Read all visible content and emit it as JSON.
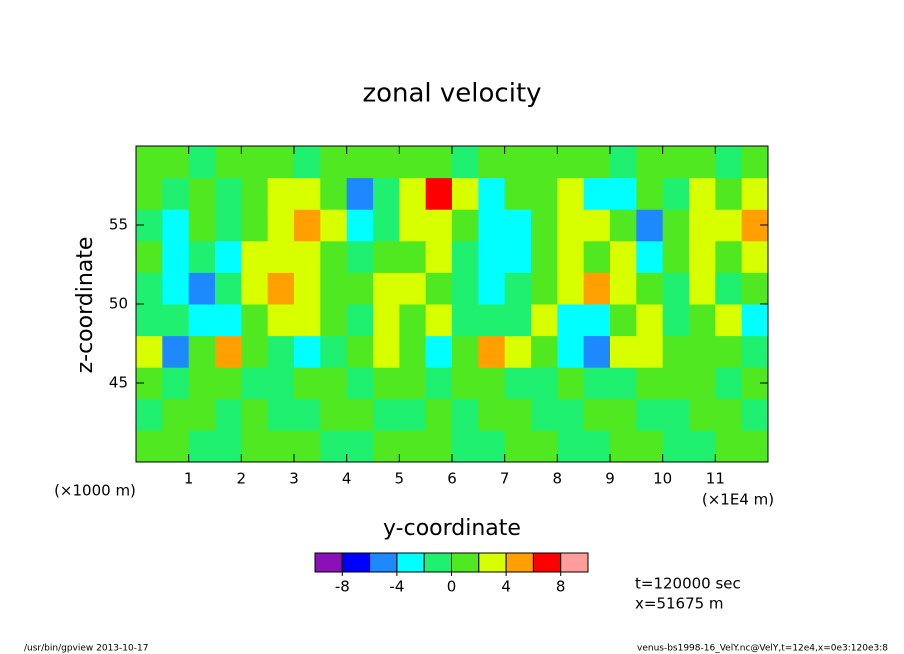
{
  "chart_data": {
    "type": "contour",
    "title": "zonal velocity",
    "xlabel": "y-coordinate",
    "ylabel": "z-coordinate",
    "xunit": "(×1E4 m)",
    "yunit": "(×1000 m)",
    "xlim": [
      0,
      12
    ],
    "xticks": [
      1,
      2,
      3,
      4,
      5,
      6,
      7,
      8,
      9,
      10,
      11
    ],
    "ylim": [
      40,
      60
    ],
    "yticks": [
      45,
      50,
      55
    ],
    "x": [
      0.25,
      0.75,
      1.25,
      1.75,
      2.25,
      2.75,
      3.25,
      3.75,
      4.25,
      4.75,
      5.25,
      5.75,
      6.25,
      6.75,
      7.25,
      7.75,
      8.25,
      8.75,
      9.25,
      9.75,
      10.25,
      10.75,
      11.25,
      11.75
    ],
    "y": [
      41,
      43,
      45,
      47,
      49,
      51,
      53,
      55,
      57,
      59
    ],
    "z": [
      [
        1,
        1,
        -1,
        -1,
        1,
        1,
        1,
        -1,
        -1,
        1,
        1,
        1,
        -1,
        -1,
        1,
        1,
        -1,
        -1,
        1,
        1,
        -1,
        -1,
        1,
        1
      ],
      [
        -1,
        1,
        1,
        -1,
        1,
        -1,
        -1,
        1,
        1,
        -1,
        -1,
        1,
        -1,
        1,
        1,
        -1,
        -1,
        1,
        1,
        -1,
        -1,
        1,
        1,
        -1
      ],
      [
        1,
        -1,
        1,
        1,
        -1,
        -1,
        1,
        1,
        -1,
        1,
        1,
        -1,
        1,
        1,
        -1,
        -1,
        1,
        -1,
        -1,
        1,
        1,
        1,
        -1,
        1
      ],
      [
        3,
        -5,
        1,
        5,
        1,
        -1,
        -3,
        -1,
        1,
        3,
        1,
        -3,
        1,
        5,
        3,
        1,
        -3,
        -5,
        3,
        3,
        1,
        1,
        1,
        -1
      ],
      [
        -1,
        -1,
        -3,
        -3,
        1,
        3,
        3,
        1,
        -1,
        3,
        1,
        3,
        -1,
        -1,
        -1,
        3,
        -3,
        -3,
        1,
        3,
        -1,
        1,
        3,
        -3
      ],
      [
        -1,
        -3,
        -5,
        -1,
        3,
        5,
        3,
        1,
        1,
        3,
        3,
        1,
        -1,
        -3,
        -1,
        1,
        3,
        5,
        3,
        1,
        -1,
        3,
        -1,
        1
      ],
      [
        1,
        -3,
        -1,
        -3,
        3,
        3,
        3,
        1,
        -1,
        1,
        1,
        3,
        -1,
        -3,
        -3,
        1,
        3,
        1,
        3,
        -3,
        1,
        3,
        1,
        3
      ],
      [
        -1,
        -3,
        1,
        -1,
        1,
        3,
        5,
        3,
        -3,
        -1,
        3,
        3,
        1,
        -3,
        -3,
        1,
        3,
        3,
        1,
        -5,
        1,
        3,
        3,
        5
      ],
      [
        1,
        -1,
        1,
        -1,
        1,
        3,
        3,
        1,
        -5,
        -1,
        3,
        7,
        3,
        -3,
        1,
        1,
        3,
        -3,
        -3,
        1,
        -1,
        3,
        1,
        3
      ],
      [
        1,
        1,
        -1,
        1,
        1,
        1,
        -1,
        1,
        1,
        1,
        1,
        1,
        -1,
        1,
        1,
        1,
        1,
        1,
        -1,
        1,
        1,
        1,
        -1,
        1
      ]
    ],
    "levels": [
      -10,
      -8,
      -6,
      -4,
      -2,
      0,
      2,
      4,
      6,
      8,
      10
    ],
    "colors": [
      "#8a10b8",
      "#0000ff",
      "#1e88ff",
      "#00ffff",
      "#20f070",
      "#50e820",
      "#d8ff00",
      "#ffa000",
      "#ff0000",
      "#ff9c9c"
    ],
    "colorbar_ticks": [
      -8,
      -4,
      0,
      4,
      8
    ],
    "annotations": [
      "t=120000 sec",
      "x=51675 m"
    ],
    "footer_left": "/usr/bin/gpview  2013-10-17",
    "footer_right": "venus-bs1998-16_VelY.nc@VelY,t=12e4,x=0e3:120e3:8"
  }
}
